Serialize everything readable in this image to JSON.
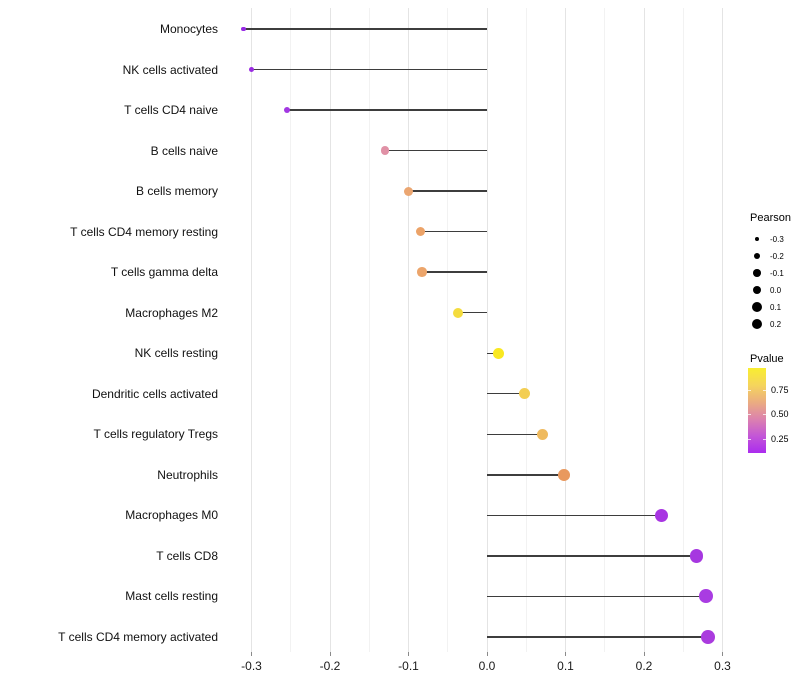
{
  "chart_data": {
    "type": "scatter",
    "variant": "horizontal-lollipop",
    "title": "",
    "xlabel": "",
    "ylabel": "",
    "grid": "vertical major and minor, light gray on white",
    "legend_position": "right",
    "xlim": [
      -0.335,
      0.31
    ],
    "x_major_ticks": [
      -0.3,
      -0.2,
      -0.1,
      0.0,
      0.1,
      0.2,
      0.3
    ],
    "x_minor_ticks": [
      -0.25,
      -0.15,
      -0.05,
      0.05,
      0.15,
      0.25
    ],
    "x_tick_labels": [
      "-0.3",
      "-0.2",
      "-0.1",
      "0.0",
      "0.1",
      "0.2",
      "0.3"
    ],
    "categories": [
      "Monocytes",
      "NK cells activated",
      "T cells CD4 naive",
      "B cells naive",
      "B cells memory",
      "T cells CD4 memory resting",
      "T cells gamma delta",
      "Macrophages M2",
      "NK cells resting",
      "Dendritic cells activated",
      "T cells regulatory  Tregs",
      "Neutrophils",
      "Macrophages M0",
      "T cells CD8",
      "Mast cells resting",
      "T cells CD4 memory activated"
    ],
    "series": [
      {
        "name": "Pearson",
        "values": [
          -0.31,
          -0.3,
          -0.255,
          -0.13,
          -0.1,
          -0.085,
          -0.083,
          -0.037,
          0.015,
          0.048,
          0.071,
          0.098,
          0.222,
          0.267,
          0.279,
          0.282
        ]
      },
      {
        "name": "Pvalue",
        "values": [
          0.1,
          0.1,
          0.15,
          0.5,
          0.63,
          0.63,
          0.63,
          0.85,
          0.9,
          0.78,
          0.72,
          0.58,
          0.14,
          0.13,
          0.14,
          0.14
        ]
      }
    ],
    "point_colors": [
      "#9629E4",
      "#9A2BE2",
      "#A238E2",
      "#E091A6",
      "#EBA671",
      "#ECA368",
      "#ECA56B",
      "#F4DC3E",
      "#F9E821",
      "#F3CE52",
      "#EFBA5E",
      "#E9995E",
      "#A835E2",
      "#A637E0",
      "#A93CE2",
      "#AA3BDE"
    ],
    "stem_color": "#3d3d3d",
    "size_legend": {
      "title": "Pearson",
      "values": [
        -0.3,
        -0.2,
        -0.1,
        0.0,
        0.1,
        0.2
      ],
      "labels": [
        "-0.3",
        "-0.2",
        "-0.1",
        "0.0",
        "0.1",
        "0.2"
      ],
      "dot_color": "#000000"
    },
    "color_legend": {
      "title": "Pvalue",
      "tick_values": [
        0.75,
        0.5,
        0.25
      ],
      "tick_labels": [
        "0.75",
        "0.50",
        "0.25"
      ],
      "gradient_top_to_bottom": [
        "#F9EE30",
        "#F5D55C",
        "#EBAD80",
        "#DC82AE",
        "#C356D7",
        "#AB2CEE"
      ]
    }
  }
}
